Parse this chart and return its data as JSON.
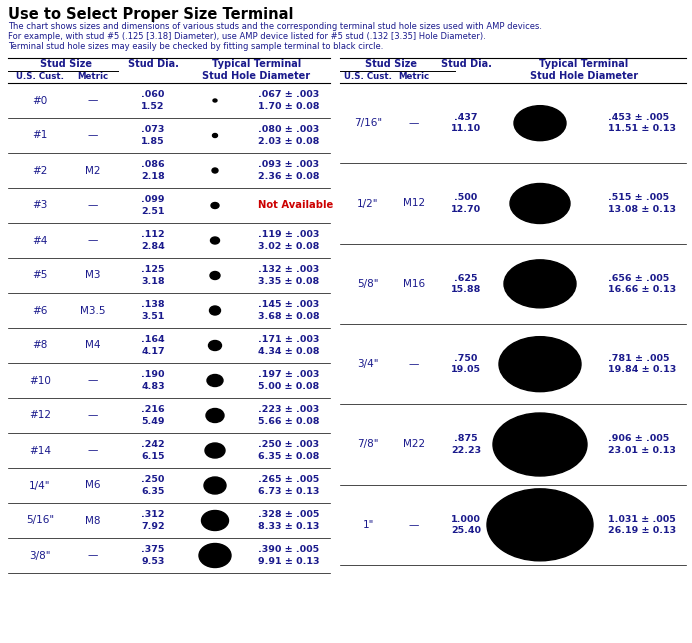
{
  "title": "Use to Select Proper Size Terminal",
  "subtitle_lines": [
    "The chart shows sizes and dimensions of various studs and the corresponding terminal stud hole sizes used with AMP devices.",
    "For example, with stud #5 (.125 [3.18] Diameter), use AMP device listed for #5 stud (.132 [3.35] Hole Diameter).",
    "Terminal stud hole sizes may easily be checked by fitting sample terminal to black circle."
  ],
  "left_rows": [
    {
      "us": "#0",
      "metric": "—",
      "dia": ".060\n1.52",
      "ew": 4,
      "eh": 3,
      "hole": ".067 ± .003\n1.70 ± 0.08",
      "not_avail": false
    },
    {
      "us": "#1",
      "metric": "—",
      "dia": ".073\n1.85",
      "ew": 5,
      "eh": 4,
      "hole": ".080 ± .003\n2.03 ± 0.08",
      "not_avail": false
    },
    {
      "us": "#2",
      "metric": "M2",
      "dia": ".086\n2.18",
      "ew": 6,
      "eh": 5,
      "hole": ".093 ± .003\n2.36 ± 0.08",
      "not_avail": false
    },
    {
      "us": "#3",
      "metric": "—",
      "dia": ".099\n2.51",
      "ew": 8,
      "eh": 6,
      "hole": "Not Available",
      "not_avail": true
    },
    {
      "us": "#4",
      "metric": "—",
      "dia": ".112\n2.84",
      "ew": 9,
      "eh": 7,
      "hole": ".119 ± .003\n3.02 ± 0.08",
      "not_avail": false
    },
    {
      "us": "#5",
      "metric": "M3",
      "dia": ".125\n3.18",
      "ew": 10,
      "eh": 8,
      "hole": ".132 ± .003\n3.35 ± 0.08",
      "not_avail": false
    },
    {
      "us": "#6",
      "metric": "M3.5",
      "dia": ".138\n3.51",
      "ew": 11,
      "eh": 9,
      "hole": ".145 ± .003\n3.68 ± 0.08",
      "not_avail": false
    },
    {
      "us": "#8",
      "metric": "M4",
      "dia": ".164\n4.17",
      "ew": 13,
      "eh": 10,
      "hole": ".171 ± .003\n4.34 ± 0.08",
      "not_avail": false
    },
    {
      "us": "#10",
      "metric": "—",
      "dia": ".190\n4.83",
      "ew": 16,
      "eh": 12,
      "hole": ".197 ± .003\n5.00 ± 0.08",
      "not_avail": false
    },
    {
      "us": "#12",
      "metric": "—",
      "dia": ".216\n5.49",
      "ew": 18,
      "eh": 14,
      "hole": ".223 ± .003\n5.66 ± 0.08",
      "not_avail": false
    },
    {
      "us": "#14",
      "metric": "—",
      "dia": ".242\n6.15",
      "ew": 20,
      "eh": 15,
      "hole": ".250 ± .003\n6.35 ± 0.08",
      "not_avail": false
    },
    {
      "us": "1/4\"",
      "metric": "M6",
      "dia": ".250\n6.35",
      "ew": 22,
      "eh": 17,
      "hole": ".265 ± .005\n6.73 ± 0.13",
      "not_avail": false
    },
    {
      "us": "5/16\"",
      "metric": "M8",
      "dia": ".312\n7.92",
      "ew": 27,
      "eh": 20,
      "hole": ".328 ± .005\n8.33 ± 0.13",
      "not_avail": false
    },
    {
      "us": "3/8\"",
      "metric": "—",
      "dia": ".375\n9.53",
      "ew": 32,
      "eh": 24,
      "hole": ".390 ± .005\n9.91 ± 0.13",
      "not_avail": false
    }
  ],
  "right_rows": [
    {
      "us": "7/16\"",
      "metric": "—",
      "dia": ".437\n11.10",
      "ew": 52,
      "eh": 35,
      "hole": ".453 ± .005\n11.51 ± 0.13"
    },
    {
      "us": "1/2\"",
      "metric": "M12",
      "dia": ".500\n12.70",
      "ew": 60,
      "eh": 40,
      "hole": ".515 ± .005\n13.08 ± 0.13"
    },
    {
      "us": "5/8\"",
      "metric": "M16",
      "dia": ".625\n15.88",
      "ew": 72,
      "eh": 48,
      "hole": ".656 ± .005\n16.66 ± 0.13"
    },
    {
      "us": "3/4\"",
      "metric": "—",
      "dia": ".750\n19.05",
      "ew": 82,
      "eh": 55,
      "hole": ".781 ± .005\n19.84 ± 0.13"
    },
    {
      "us": "7/8\"",
      "metric": "M22",
      "dia": ".875\n22.23",
      "ew": 94,
      "eh": 63,
      "hole": ".906 ± .005\n23.01 ± 0.13"
    },
    {
      "us": "1\"",
      "metric": "—",
      "dia": "1.000\n25.40",
      "ew": 106,
      "eh": 72,
      "hole": "1.031 ± .005\n26.19 ± 0.13"
    }
  ],
  "text_color": "#1a1a8c",
  "black": "#000000",
  "red_color": "#cc0000",
  "bg_color": "#ffffff"
}
